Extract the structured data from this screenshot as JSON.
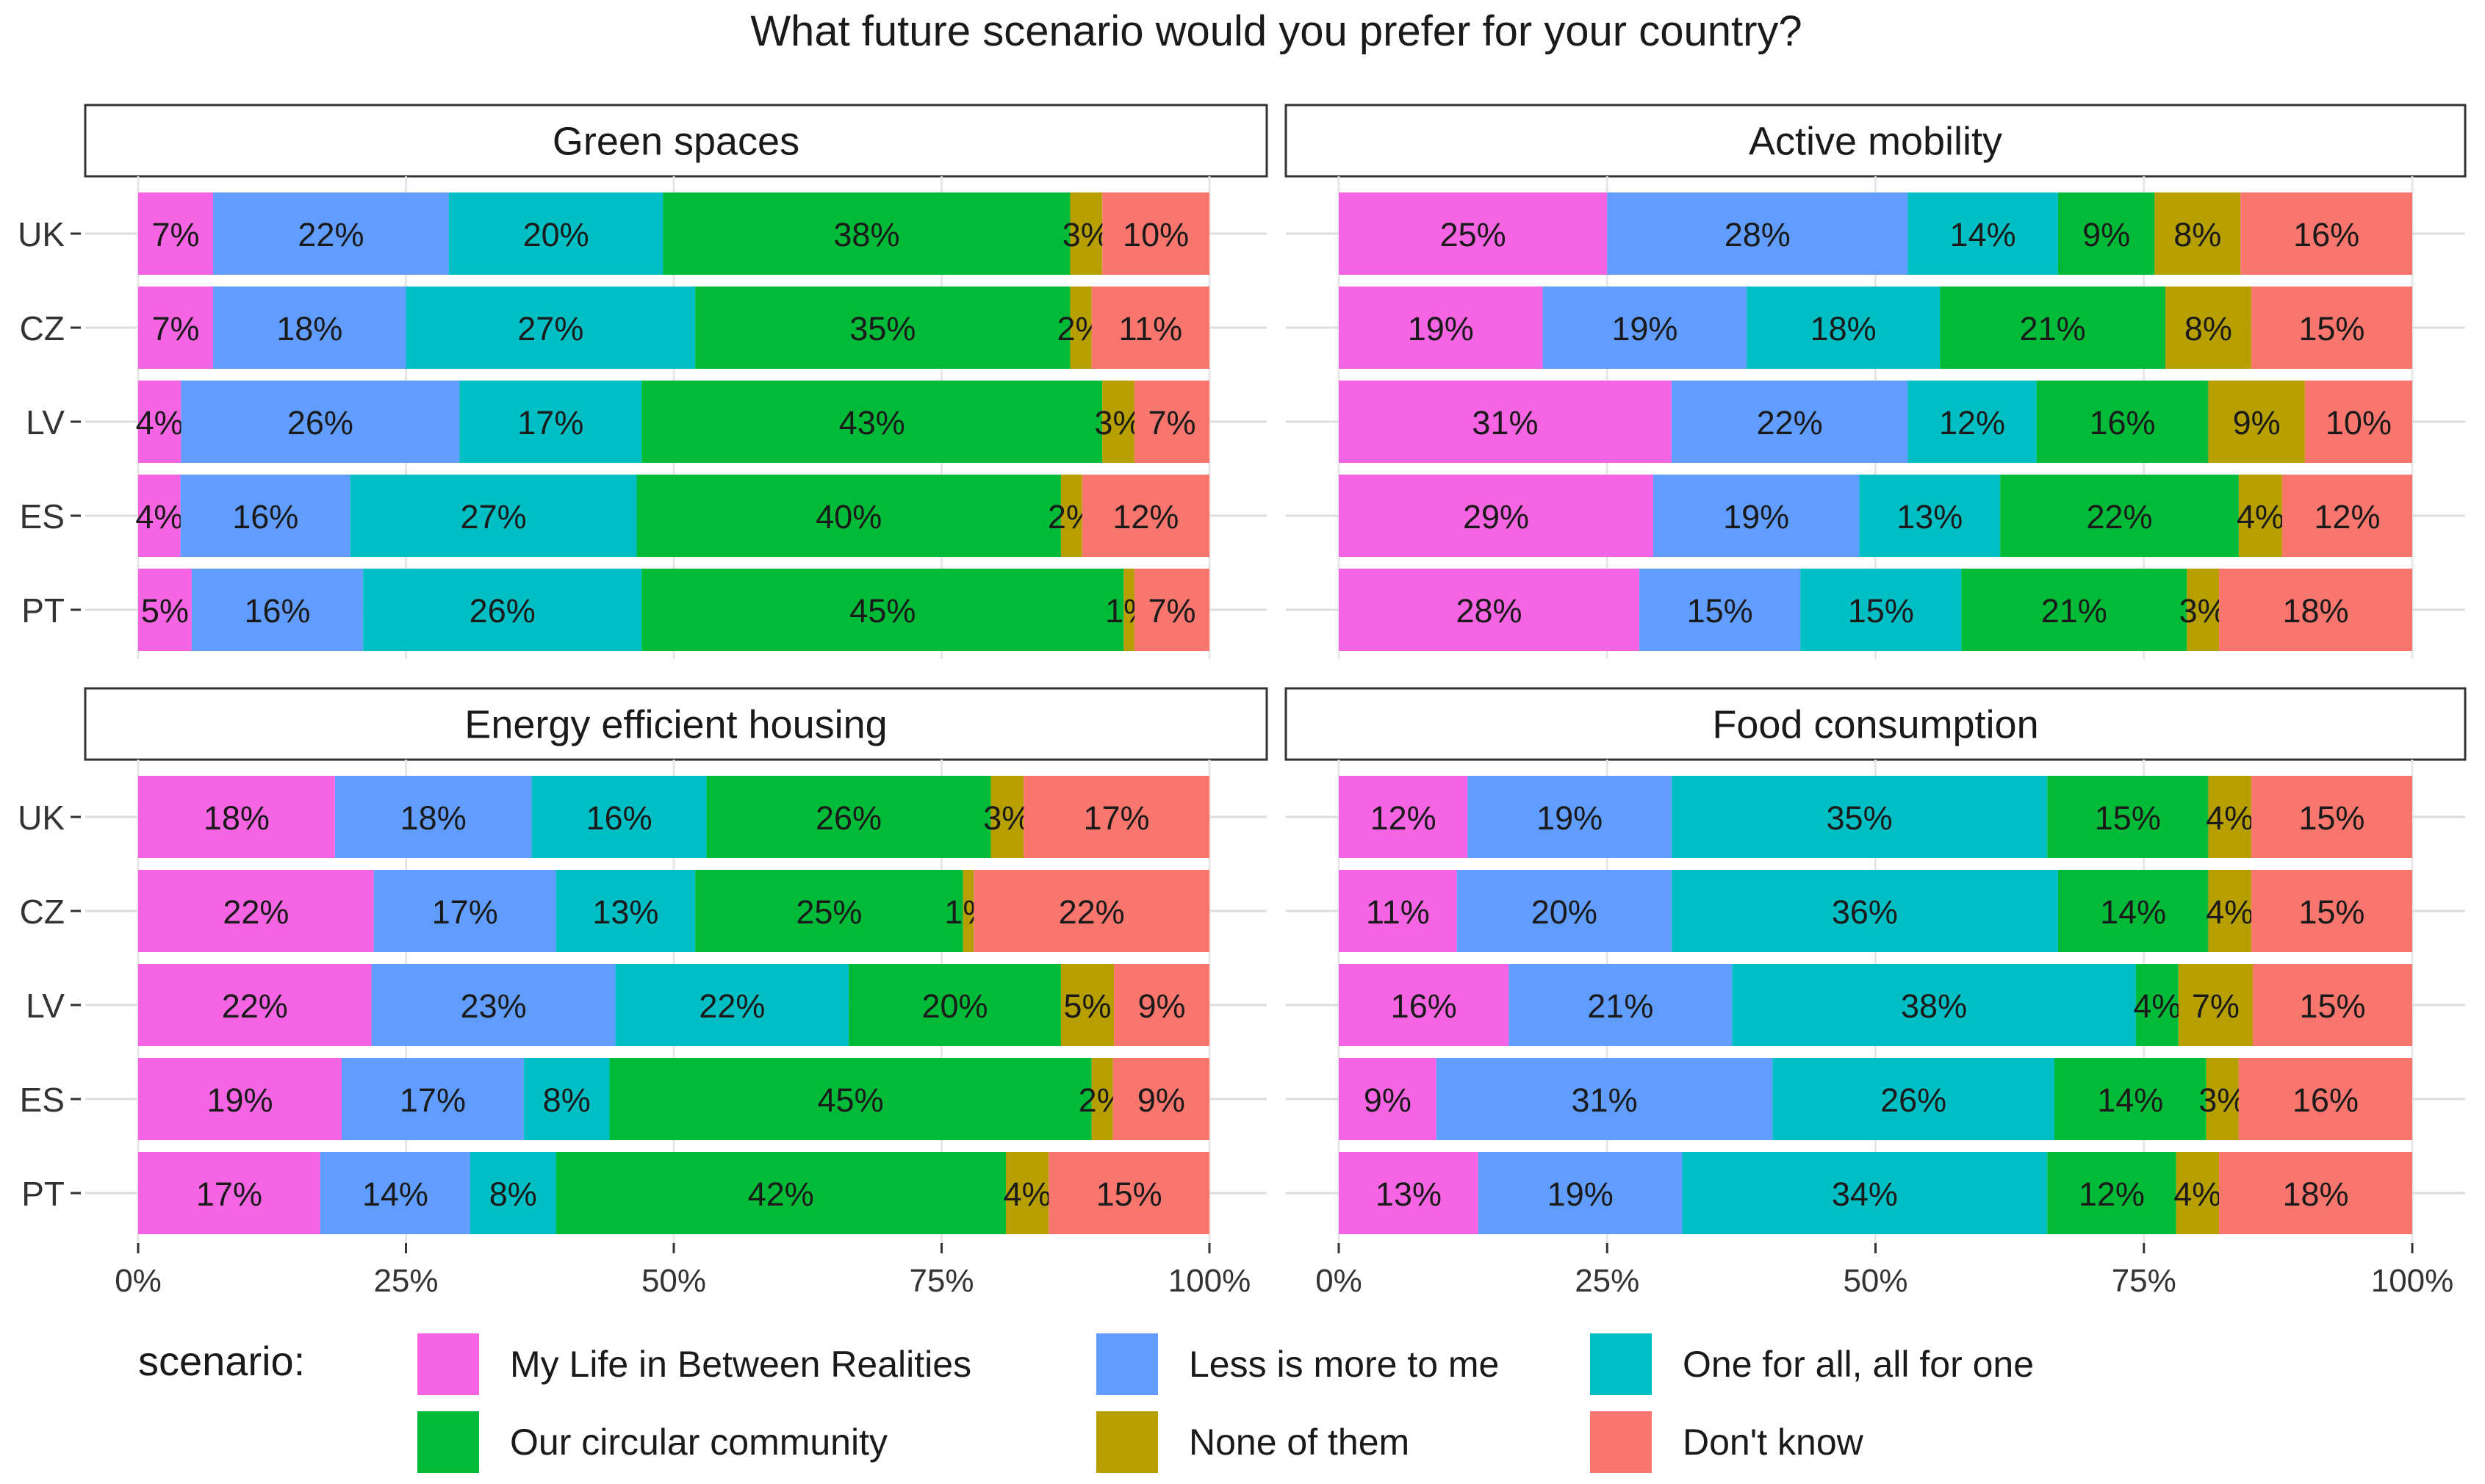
{
  "chart_data": {
    "type": "bar",
    "orientation": "horizontal",
    "stacked": true,
    "title": "What future scenario would you prefer for your country?",
    "categories": [
      "UK",
      "CZ",
      "LV",
      "ES",
      "PT"
    ],
    "x_ticks": [
      "0%",
      "25%",
      "50%",
      "75%",
      "100%"
    ],
    "xlim": [
      0,
      100
    ],
    "grid": true,
    "legend": {
      "title": "scenario:",
      "placement": "bottom",
      "items": [
        {
          "name": "My Life in Between Realities",
          "color": "#F564E3"
        },
        {
          "name": "Less is more to me",
          "color": "#619CFF"
        },
        {
          "name": "One for all, all for one",
          "color": "#00BFC4"
        },
        {
          "name": "Our circular community",
          "color": "#00BA38"
        },
        {
          "name": "None of them",
          "color": "#B79F00"
        },
        {
          "name": "Don't know",
          "color": "#F8766D"
        }
      ]
    },
    "panels": [
      {
        "title": "Green spaces",
        "values": [
          [
            7,
            22,
            20,
            38,
            3,
            10
          ],
          [
            7,
            18,
            27,
            35,
            2,
            11
          ],
          [
            4,
            26,
            17,
            43,
            3,
            7
          ],
          [
            4,
            16,
            27,
            40,
            2,
            12
          ],
          [
            5,
            16,
            26,
            45,
            1,
            7
          ]
        ]
      },
      {
        "title": "Active mobility",
        "values": [
          [
            25,
            28,
            14,
            9,
            8,
            16
          ],
          [
            19,
            19,
            18,
            21,
            8,
            15
          ],
          [
            31,
            22,
            12,
            16,
            9,
            10
          ],
          [
            29,
            19,
            13,
            22,
            4,
            12
          ],
          [
            28,
            15,
            15,
            21,
            3,
            18
          ]
        ]
      },
      {
        "title": "Energy efficient housing",
        "values": [
          [
            18,
            18,
            16,
            26,
            3,
            17
          ],
          [
            22,
            17,
            13,
            25,
            1,
            22
          ],
          [
            22,
            23,
            22,
            20,
            5,
            9
          ],
          [
            19,
            17,
            8,
            45,
            2,
            9
          ],
          [
            17,
            14,
            8,
            42,
            4,
            15
          ]
        ]
      },
      {
        "title": "Food consumption",
        "values": [
          [
            12,
            19,
            35,
            15,
            4,
            15
          ],
          [
            11,
            20,
            36,
            14,
            4,
            15
          ],
          [
            16,
            21,
            38,
            4,
            7,
            15
          ],
          [
            9,
            31,
            26,
            14,
            3,
            16
          ],
          [
            13,
            19,
            34,
            12,
            4,
            18
          ]
        ]
      }
    ]
  }
}
